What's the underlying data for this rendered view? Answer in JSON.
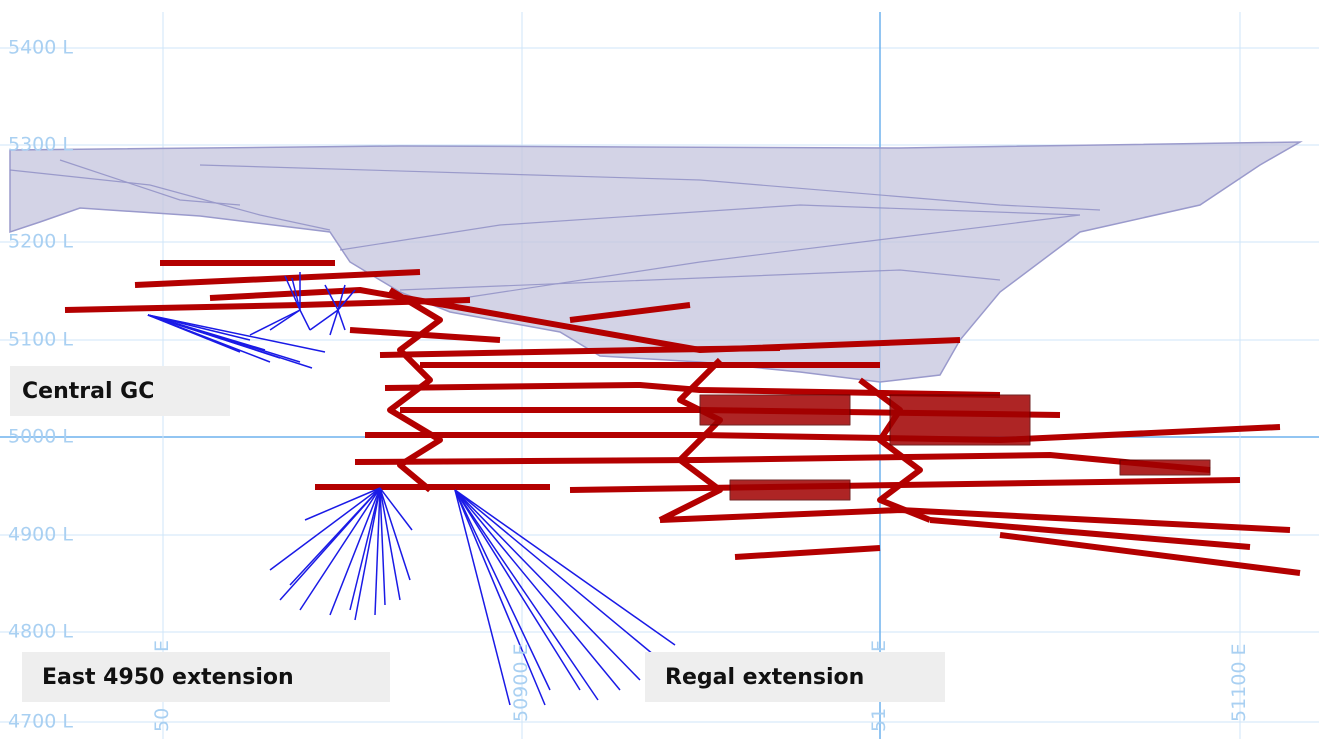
{
  "levels": [
    "5400 L",
    "5300 L",
    "5200 L",
    "5100 L",
    "5000 L",
    "4900 L",
    "4800 L",
    "4700 L"
  ],
  "eastings": [
    {
      "top": "E",
      "bottom": "50"
    },
    {
      "label": "50900 E"
    },
    {
      "top": "E",
      "bottom": "51"
    },
    {
      "label": "51100 E"
    }
  ],
  "callouts": [
    "Central GC",
    "East 4950 extension",
    "Regal extension"
  ]
}
